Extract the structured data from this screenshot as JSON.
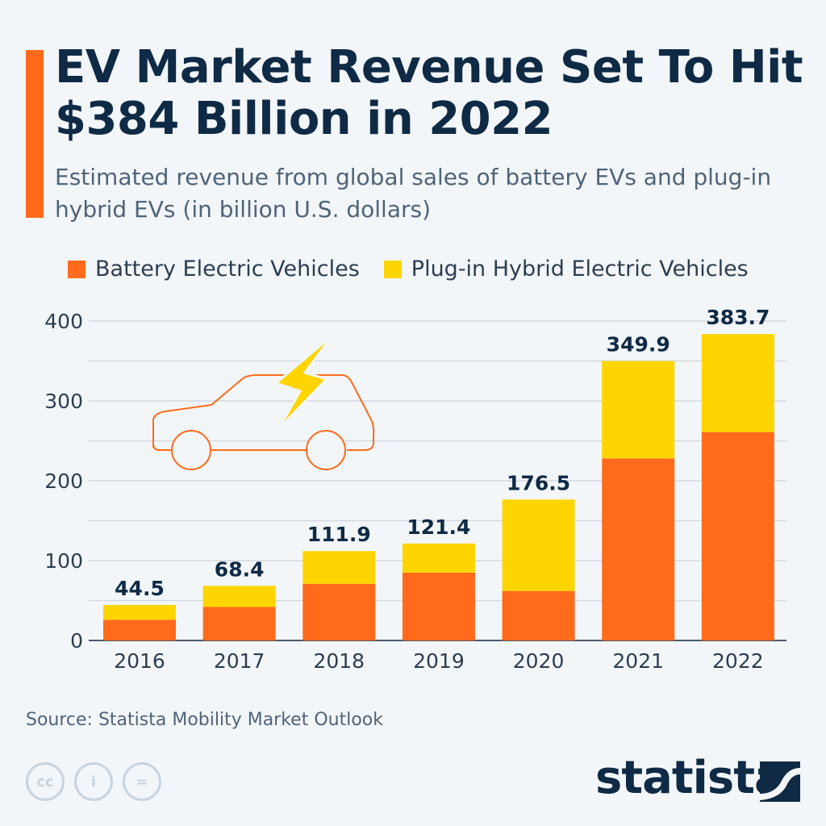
{
  "title": "EV Market Revenue Set To Hit $384 Billion in 2022",
  "subtitle": "Estimated revenue from global sales of battery EVs and plug-in hybrid EVs (in billion U.S. dollars)",
  "source": "Source: Statista Mobility Market Outlook",
  "logo": "statista",
  "colors": {
    "bev": "#ff6b1a",
    "phev": "#ffd500",
    "accent": "#ff6b1a",
    "text": "#0f2a45"
  },
  "icons": [
    "car-outline-icon",
    "lightning-bolt-icon",
    "cc-icon",
    "attribution-icon",
    "no-derivatives-icon"
  ],
  "chart_data": {
    "type": "bar",
    "stacked": true,
    "categories": [
      "2016",
      "2017",
      "2018",
      "2019",
      "2020",
      "2021",
      "2022"
    ],
    "series": [
      {
        "name": "Battery Electric Vehicles",
        "values": [
          26,
          42,
          71,
          85,
          62,
          228,
          261
        ]
      },
      {
        "name": "Plug-in Hybrid Electric Vehicles",
        "values": [
          18.5,
          26.4,
          40.9,
          36.4,
          114.5,
          121.9,
          122.7
        ]
      }
    ],
    "totals": [
      "44.5",
      "68.4",
      "111.9",
      "121.4",
      "176.5",
      "349.9",
      "383.7"
    ],
    "yticks": [
      "0",
      "100",
      "200",
      "300",
      "400"
    ],
    "ylim": [
      0,
      400
    ],
    "grid": true,
    "legend": "top-left"
  }
}
